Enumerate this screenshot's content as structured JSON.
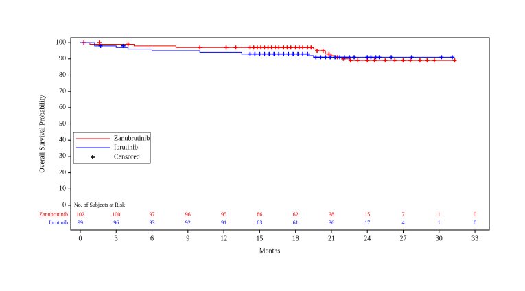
{
  "chart_data": {
    "type": "line",
    "x_label": "Months",
    "y_label": "Overall Survival Probability",
    "xlim": [
      -0.8,
      34.2
    ],
    "ylim": [
      -15.2,
      103
    ],
    "xticks": [
      0,
      3,
      6,
      9,
      12,
      15,
      18,
      21,
      24,
      27,
      30,
      33
    ],
    "yticks": [
      0,
      10,
      20,
      30,
      40,
      50,
      60,
      70,
      80,
      90,
      100
    ],
    "censored_label": "Censored",
    "series": [
      {
        "name": "Zanubrutinib",
        "color": "#ff0000",
        "x": [
          0,
          0.8,
          4.5,
          8,
          19.5,
          19.8,
          20.5,
          21,
          21.3,
          22,
          22.5,
          31.3
        ],
        "values": [
          100,
          99,
          98,
          97,
          96,
          95,
          93,
          92,
          91,
          90,
          89,
          89
        ],
        "censored_x": [
          0.3,
          1.6,
          4,
          10,
          12.2,
          13,
          14.2,
          14.5,
          14.8,
          15.1,
          15.4,
          15.7,
          16,
          16.3,
          16.6,
          17,
          17.3,
          17.6,
          18,
          18.3,
          18.6,
          19,
          19.3,
          19.8,
          20.3,
          20.8,
          21.5,
          22,
          22.6,
          23.2,
          24,
          24.6,
          25.5,
          26.3,
          27,
          27.6,
          28.4,
          29,
          29.6,
          31.3
        ],
        "censored_values": [
          100,
          100,
          99,
          97,
          97,
          97,
          97,
          97,
          97,
          97,
          97,
          97,
          97,
          97,
          97,
          97,
          97,
          97,
          97,
          97,
          97,
          97,
          97,
          95,
          95,
          93,
          91,
          90,
          89,
          89,
          89,
          89,
          89,
          89,
          89,
          89,
          89,
          89,
          89,
          89
        ]
      },
      {
        "name": "Ibrutinib",
        "color": "#0000ff",
        "x": [
          0,
          1.2,
          3,
          4,
          6,
          10,
          13.5,
          19,
          19.5,
          31.3
        ],
        "values": [
          100,
          98,
          97,
          96,
          95,
          94,
          93,
          92,
          91,
          91
        ],
        "censored_x": [
          1.7,
          3.6,
          14.2,
          14.6,
          15,
          15.4,
          15.8,
          16.2,
          16.6,
          17,
          17.4,
          17.8,
          18.2,
          18.6,
          19,
          19.7,
          20.1,
          20.5,
          20.9,
          21.3,
          21.7,
          22.1,
          22.5,
          22.9,
          24,
          24.3,
          24.7,
          25,
          26,
          27.7,
          30.2,
          31.1
        ],
        "censored_values": [
          98,
          98,
          93,
          93,
          93,
          93,
          93,
          93,
          93,
          93,
          93,
          93,
          93,
          93,
          93,
          91,
          91,
          91,
          91,
          91,
          91,
          91,
          91,
          91,
          91,
          91,
          91,
          91,
          91,
          91,
          91,
          91
        ]
      }
    ],
    "risk_table": {
      "title": "No. of Subjects at Risk",
      "rows": [
        {
          "label": "Zanubrutinib",
          "color": "#ff0000",
          "values": [
            102,
            100,
            97,
            96,
            95,
            86,
            62,
            38,
            15,
            7,
            1,
            0
          ]
        },
        {
          "label": "Ibrutinib",
          "color": "#0000ff",
          "values": [
            99,
            96,
            93,
            92,
            91,
            83,
            61,
            36,
            17,
            4,
            1,
            0
          ]
        }
      ]
    }
  }
}
